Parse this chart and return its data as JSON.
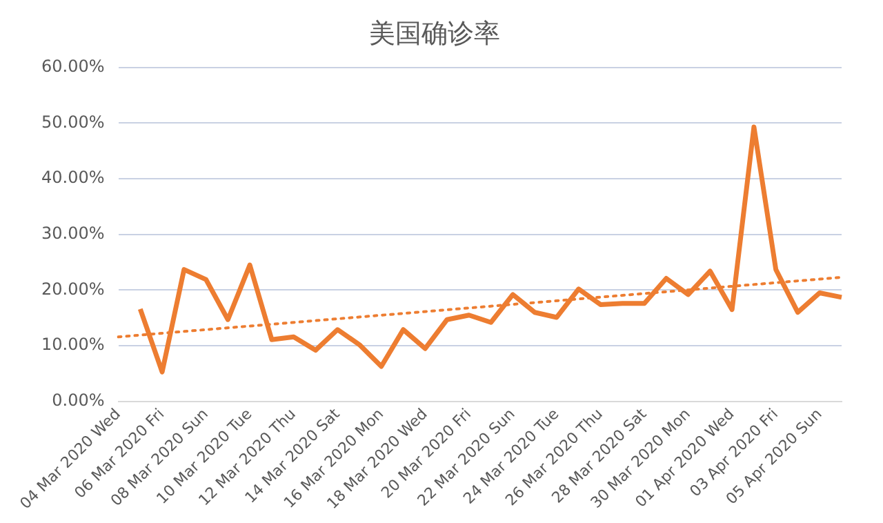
{
  "chart_data": {
    "type": "line",
    "title": "美国确诊率",
    "categories": [
      "04 Mar 2020 Wed",
      null,
      "06 Mar 2020 Fri",
      null,
      "08 Mar 2020 Sun",
      null,
      "10 Mar 2020 Tue",
      null,
      "12 Mar 2020 Thu",
      null,
      "14 Mar 2020 Sat",
      null,
      "16 Mar 2020 Mon",
      null,
      "18 Mar 2020 Wed",
      null,
      "20 Mar 2020 Fri",
      null,
      "22 Mar 2020 Sun",
      null,
      "24 Mar 2020 Tue",
      null,
      "26 Mar 2020 Thu",
      null,
      "28 Mar 2020 Sat",
      null,
      "30 Mar 2020 Mon",
      null,
      "01 Apr 2020 Wed",
      null,
      "03 Apr 2020 Fri",
      null,
      "05 Apr 2020 Sun",
      null
    ],
    "series": [
      {
        "color": "#ed7d31",
        "line_style": "solid",
        "values": [
          null,
          16.6,
          5.3,
          23.7,
          21.9,
          14.7,
          24.5,
          11.1,
          11.6,
          9.2,
          12.9,
          10.2,
          6.3,
          12.9,
          9.5,
          14.7,
          15.5,
          14.2,
          19.2,
          16.0,
          15.1,
          20.2,
          17.4,
          17.6,
          17.6,
          22.1,
          19.2,
          23.4,
          16.5,
          49.3,
          23.7,
          16.0,
          19.5,
          18.7
        ]
      },
      {
        "type": "line",
        "color": "#ed7d31",
        "line_style": "dotted",
        "values": [
          11.6,
          null,
          null,
          null,
          null,
          null,
          null,
          null,
          null,
          null,
          null,
          null,
          null,
          null,
          null,
          null,
          null,
          null,
          null,
          null,
          null,
          null,
          null,
          null,
          null,
          null,
          null,
          null,
          null,
          null,
          null,
          null,
          null,
          22.3
        ]
      }
    ],
    "ylim": [
      0,
      60
    ],
    "yticks": [
      {
        "value": 0,
        "label": "0.00%"
      },
      {
        "value": 10,
        "label": "10.00%"
      },
      {
        "value": 20,
        "label": "20.00%"
      },
      {
        "value": 30,
        "label": "30.00%"
      },
      {
        "value": 40,
        "label": "40.00%"
      },
      {
        "value": 50,
        "label": "50.00%"
      },
      {
        "value": 60,
        "label": "60.00%"
      }
    ],
    "grid": "y",
    "marker": "none"
  }
}
